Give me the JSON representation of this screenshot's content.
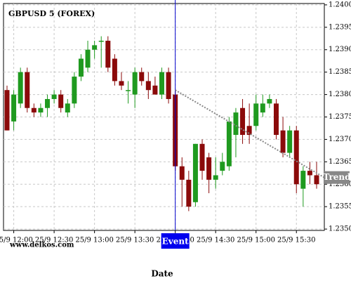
{
  "chart_data": {
    "type": "candlestick",
    "title": "GBPUSD 5 (FOREX)",
    "watermark": "www.delkos.com",
    "x_label": "Date",
    "categories": [
      null,
      "25/9 12:00",
      null,
      null,
      null,
      null,
      null,
      "25/9 12:30",
      null,
      null,
      null,
      null,
      null,
      "25/9 13:00",
      null,
      null,
      null,
      null,
      null,
      "25/9 13:30",
      null,
      null,
      null,
      null,
      null,
      "25/9 14:00",
      null,
      null,
      null,
      null,
      null,
      "25/9 14:30",
      null,
      null,
      null,
      null,
      null,
      "25/9 15:00",
      null,
      null,
      null,
      null,
      null,
      "25/9 15:30",
      null,
      null,
      null
    ],
    "open": [
      1.2381,
      1.2374,
      1.2378,
      1.2385,
      1.2377,
      1.2376,
      1.2377,
      1.2379,
      1.238,
      1.2376,
      1.2378,
      1.2384,
      1.2386,
      1.239,
      1.2392,
      1.2392,
      1.2388,
      1.2383,
      1.2381,
      1.238,
      1.2385,
      1.2383,
      1.2382,
      1.238,
      1.2385,
      1.238,
      1.2364,
      1.2361,
      1.2356,
      1.2369,
      1.2366,
      1.2361,
      1.2363,
      1.2364,
      1.2371,
      1.2377,
      1.2373,
      1.2373,
      1.2376,
      1.2378,
      1.2378,
      1.2372,
      1.2367,
      1.2372,
      1.2359,
      1.2363,
      1.2362
    ],
    "high": [
      1.2382,
      1.2381,
      1.2386,
      1.2386,
      1.2378,
      1.2378,
      1.238,
      1.2381,
      1.2381,
      1.2379,
      1.2385,
      1.2389,
      1.2392,
      1.2392,
      1.2393,
      1.2393,
      1.2389,
      1.2385,
      1.2383,
      1.2386,
      1.2386,
      1.2385,
      1.2384,
      1.2386,
      1.2386,
      1.2381,
      1.2366,
      1.2363,
      1.2369,
      1.237,
      1.2367,
      1.2366,
      1.2367,
      1.2375,
      1.2377,
      1.2379,
      1.2378,
      1.238,
      1.238,
      1.238,
      1.2379,
      1.2375,
      1.2373,
      1.2373,
      1.2364,
      1.2365,
      1.2365
    ],
    "low": [
      1.2372,
      1.2372,
      1.2377,
      1.2376,
      1.2375,
      1.2375,
      1.2375,
      1.2378,
      1.2376,
      1.2375,
      1.2377,
      1.2383,
      1.2385,
      1.2388,
      1.2386,
      1.2385,
      1.2382,
      1.2381,
      1.2378,
      1.2377,
      1.2382,
      1.2379,
      1.238,
      1.2379,
      1.2378,
      1.2363,
      1.2355,
      1.2354,
      1.2355,
      1.2361,
      1.2358,
      1.2359,
      1.2362,
      1.2363,
      1.2366,
      1.2369,
      1.2369,
      1.2372,
      1.2375,
      1.2377,
      1.237,
      1.2366,
      1.2366,
      1.2358,
      1.2355,
      1.236,
      1.2359
    ],
    "close": [
      1.2372,
      1.238,
      1.2385,
      1.2377,
      1.2376,
      1.2377,
      1.2379,
      1.238,
      1.2377,
      1.2378,
      1.2384,
      1.2388,
      1.239,
      1.2391,
      1.2392,
      1.2386,
      1.2383,
      1.2382,
      1.2381,
      1.2385,
      1.2383,
      1.2381,
      1.238,
      1.2385,
      1.2379,
      1.2364,
      1.2361,
      1.2355,
      1.2369,
      1.2363,
      1.2361,
      1.2362,
      1.2365,
      1.2374,
      1.2376,
      1.2371,
      1.2371,
      1.2378,
      1.2378,
      1.2379,
      1.2371,
      1.2367,
      1.2372,
      1.236,
      1.2363,
      1.2362,
      1.236
    ],
    "up_color": "#1f9a1f",
    "down_color": "#8b0a0a",
    "ylim": [
      1.23497,
      1.24003
    ],
    "yticks": [
      {
        "value": 1.24,
        "label": "1.2400"
      },
      1.2395,
      {
        "value": 1.239,
        "label": "1.2390"
      },
      1.2385,
      {
        "value": 1.238,
        "label": "1.2380"
      },
      1.2375,
      {
        "value": 1.237,
        "label": "1.2370"
      },
      1.2365,
      {
        "value": 1.236,
        "label": "1.2360"
      },
      1.2355,
      {
        "value": 1.235,
        "label": "1.2350"
      }
    ],
    "grid": true,
    "event": {
      "label": "Event",
      "at": "25/9 14:00"
    },
    "trend": {
      "label": "Trend",
      "from": 1.2381,
      "to": 1.23615
    }
  }
}
